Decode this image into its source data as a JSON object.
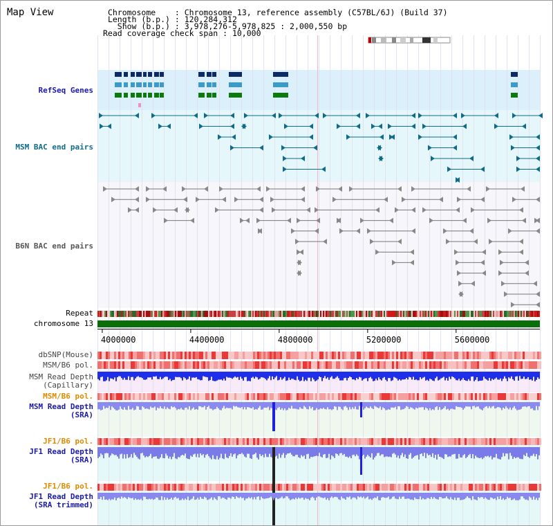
{
  "page_title": "Map View",
  "header": {
    "chromosome_label": "Chromosome",
    "chromosome_value": "Chromosome 13, reference assembly (C57BL/6J) (Build 37)",
    "length_label": "Length (b.p.)",
    "length_value": "120,284,312",
    "show_label": "Show (b.p.)",
    "show_value": "3,978,276-5,978,825 : 2,000,550 bp",
    "coverage_label": "Read coverage check span",
    "coverage_value": "10,000"
  },
  "tracks": {
    "refseq": "RefSeq Genes",
    "msm_bac": "MSM BAC end pairs",
    "b6n_bac": "B6N BAC end pairs",
    "repeat": "Repeat",
    "chromosome": "chromosome 13",
    "dbsnp": "dbSNP(Mouse)",
    "msm_b6_pol_1": "MSM/B6 pol.",
    "msm_depth_cap_1": "MSM Read Depth",
    "msm_depth_cap_2": "(Capillary)",
    "msm_b6_pol_2": "MSM/B6 pol.",
    "msm_depth_sra_1": "MSM Read Depth",
    "msm_depth_sra_2": "(SRA)",
    "jf1_b6_pol_1": "JF1/B6 pol.",
    "jf1_depth_sra_1": "JF1 Read Depth",
    "jf1_depth_sra_2": "(SRA)",
    "jf1_b6_pol_2": "JF1/B6 pol.",
    "jf1_depth_trim_1": "JF1 Read Depth",
    "jf1_depth_trim_2": "(SRA trimmed)"
  },
  "axis": {
    "ticks": [
      "4000000",
      "4400000",
      "4800000",
      "5200000",
      "5600000"
    ],
    "tick_values": [
      4000000,
      4400000,
      4800000,
      5200000,
      5600000
    ],
    "range": [
      3978276,
      5978825
    ]
  },
  "colors": {
    "gene_navy": "#0d2a66",
    "gene_teal": "#3a9ac9",
    "gene_green": "#0c7a0c",
    "msm_pair": "#0f6b8a",
    "b6n_pair": "#555555",
    "chrom_bar": "#0a6e0a",
    "depth_blue": "#1f2ee8",
    "depth_light": "#8a8af0"
  }
}
